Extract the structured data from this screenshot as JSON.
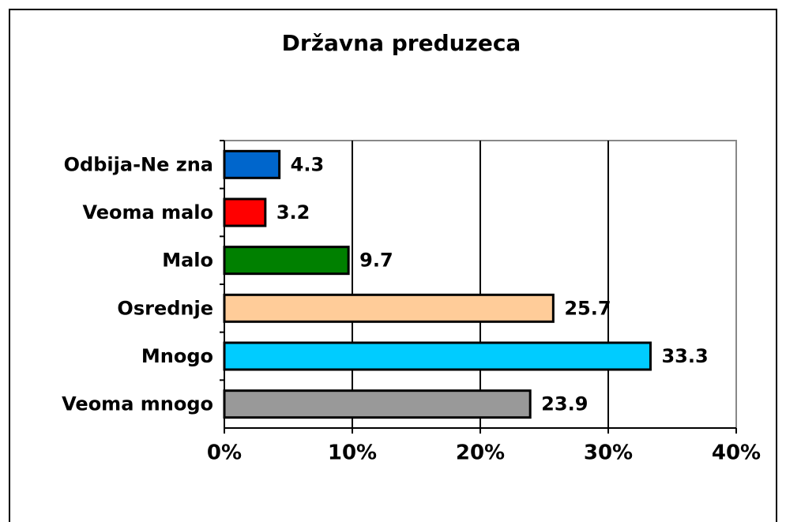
{
  "chart_data": {
    "type": "bar",
    "orientation": "horizontal",
    "title": "Državna preduzeca",
    "categories": [
      "Odbija-Ne zna",
      "Veoma malo",
      "Malo",
      "Osrednje",
      "Mnogo",
      "Veoma mnogo"
    ],
    "values": [
      4.3,
      3.2,
      9.7,
      25.7,
      33.3,
      23.9
    ],
    "colors": [
      "#0066cc",
      "#ff0000",
      "#008000",
      "#ffcc99",
      "#00ccff",
      "#999999"
    ],
    "xlim": [
      0,
      40
    ],
    "xticks": [
      {
        "value": 0,
        "label": "0%"
      },
      {
        "value": 10,
        "label": "10%"
      },
      {
        "value": 20,
        "label": "20%"
      },
      {
        "value": 30,
        "label": "30%"
      },
      {
        "value": 40,
        "label": "40%"
      }
    ],
    "grid": true
  }
}
